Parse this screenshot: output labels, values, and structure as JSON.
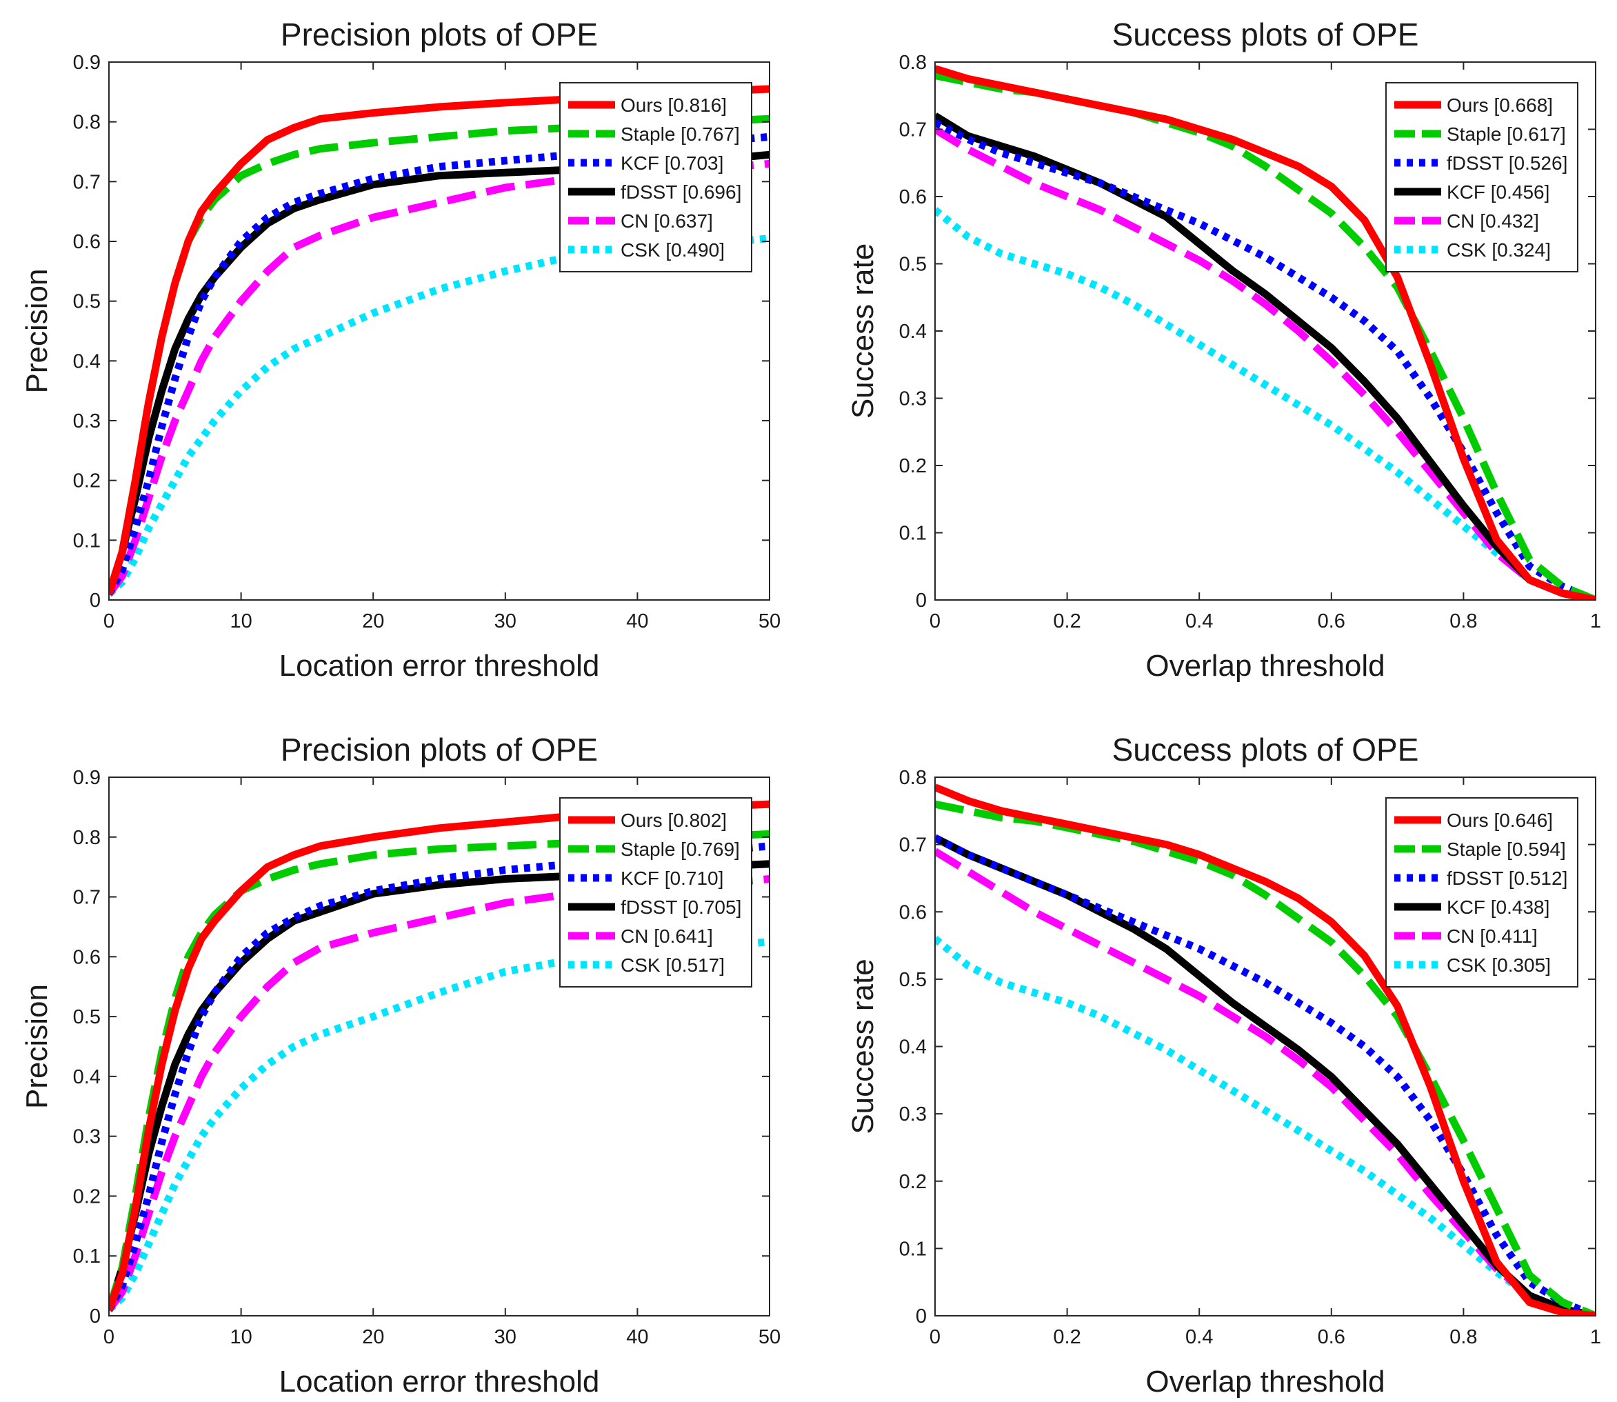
{
  "chart_data": [
    {
      "type": "line",
      "title": "Precision plots of OPE",
      "xlabel": "Location error threshold",
      "ylabel": "Precision",
      "xlim": [
        0,
        50
      ],
      "ylim": [
        0,
        0.9
      ],
      "xticks": [
        "0",
        "10",
        "20",
        "30",
        "40",
        "50"
      ],
      "yticks": [
        "0",
        "0.1",
        "0.2",
        "0.3",
        "0.4",
        "0.5",
        "0.6",
        "0.7",
        "0.8",
        "0.9"
      ],
      "legend_position": "top-right",
      "x": [
        0,
        1,
        2,
        3,
        4,
        5,
        6,
        7,
        8,
        10,
        12,
        14,
        16,
        20,
        25,
        30,
        35,
        40,
        45,
        50
      ],
      "series": [
        {
          "name": "Ours [0.816]",
          "color": "#ff0000",
          "dash": "solid",
          "values": [
            0.01,
            0.08,
            0.2,
            0.33,
            0.44,
            0.53,
            0.6,
            0.65,
            0.68,
            0.73,
            0.77,
            0.79,
            0.805,
            0.815,
            0.825,
            0.832,
            0.838,
            0.845,
            0.85,
            0.855
          ]
        },
        {
          "name": "Staple [0.767]",
          "color": "#00cc00",
          "dash": "long",
          "values": [
            0.01,
            0.08,
            0.2,
            0.33,
            0.44,
            0.53,
            0.6,
            0.64,
            0.67,
            0.71,
            0.73,
            0.745,
            0.755,
            0.765,
            0.775,
            0.785,
            0.79,
            0.795,
            0.8,
            0.805
          ]
        },
        {
          "name": "KCF [0.703]",
          "color": "#0000ff",
          "dash": "dot",
          "values": [
            0.01,
            0.05,
            0.12,
            0.2,
            0.29,
            0.37,
            0.44,
            0.5,
            0.54,
            0.6,
            0.64,
            0.665,
            0.68,
            0.705,
            0.725,
            0.735,
            0.745,
            0.755,
            0.765,
            0.775
          ]
        },
        {
          "name": "fDSST [0.696]",
          "color": "#000000",
          "dash": "solid",
          "values": [
            0.01,
            0.08,
            0.17,
            0.27,
            0.35,
            0.42,
            0.47,
            0.51,
            0.54,
            0.59,
            0.63,
            0.655,
            0.67,
            0.695,
            0.71,
            0.715,
            0.72,
            0.725,
            0.735,
            0.745
          ]
        },
        {
          "name": "CN [0.637]",
          "color": "#ff00ff",
          "dash": "long",
          "values": [
            0.01,
            0.04,
            0.1,
            0.17,
            0.24,
            0.3,
            0.35,
            0.4,
            0.44,
            0.5,
            0.55,
            0.59,
            0.61,
            0.64,
            0.665,
            0.69,
            0.705,
            0.715,
            0.72,
            0.73
          ]
        },
        {
          "name": "CSK [0.490]",
          "color": "#00e5ff",
          "dash": "dot",
          "values": [
            0.01,
            0.03,
            0.07,
            0.12,
            0.16,
            0.2,
            0.24,
            0.27,
            0.3,
            0.35,
            0.39,
            0.42,
            0.44,
            0.48,
            0.52,
            0.55,
            0.575,
            0.585,
            0.595,
            0.605
          ]
        }
      ],
      "legend": [
        "Ours [0.816]",
        "Staple [0.767]",
        "KCF [0.703]",
        "fDSST [0.696]",
        "CN [0.637]",
        "CSK [0.490]"
      ]
    },
    {
      "type": "line",
      "title": "Success plots of OPE",
      "xlabel": "Overlap threshold",
      "ylabel": "Success rate",
      "xlim": [
        0,
        1
      ],
      "ylim": [
        0,
        0.8
      ],
      "xticks": [
        "0",
        "0.2",
        "0.4",
        "0.6",
        "0.8",
        "1"
      ],
      "yticks": [
        "0",
        "0.1",
        "0.2",
        "0.3",
        "0.4",
        "0.5",
        "0.6",
        "0.7",
        "0.8"
      ],
      "legend_position": "top-right",
      "x": [
        0,
        0.05,
        0.1,
        0.15,
        0.2,
        0.25,
        0.3,
        0.35,
        0.4,
        0.45,
        0.5,
        0.55,
        0.6,
        0.65,
        0.7,
        0.75,
        0.8,
        0.85,
        0.9,
        0.95,
        1.0
      ],
      "series": [
        {
          "name": "Ours [0.668]",
          "color": "#ff0000",
          "dash": "solid",
          "values": [
            0.79,
            0.775,
            0.765,
            0.755,
            0.745,
            0.735,
            0.725,
            0.715,
            0.7,
            0.685,
            0.665,
            0.645,
            0.615,
            0.565,
            0.48,
            0.35,
            0.21,
            0.09,
            0.03,
            0.01,
            0.0
          ]
        },
        {
          "name": "Staple [0.617]",
          "color": "#00cc00",
          "dash": "long",
          "values": [
            0.78,
            0.77,
            0.76,
            0.755,
            0.745,
            0.735,
            0.725,
            0.71,
            0.695,
            0.675,
            0.645,
            0.61,
            0.575,
            0.525,
            0.465,
            0.37,
            0.27,
            0.16,
            0.06,
            0.02,
            0.0
          ]
        },
        {
          "name": "fDSST [0.526]",
          "color": "#0000ff",
          "dash": "dot",
          "values": [
            0.71,
            0.685,
            0.665,
            0.65,
            0.635,
            0.62,
            0.6,
            0.58,
            0.56,
            0.535,
            0.51,
            0.48,
            0.45,
            0.415,
            0.37,
            0.3,
            0.22,
            0.13,
            0.05,
            0.02,
            0.0
          ]
        },
        {
          "name": "KCF [0.456]",
          "color": "#000000",
          "dash": "solid",
          "values": [
            0.72,
            0.69,
            0.675,
            0.66,
            0.64,
            0.62,
            0.595,
            0.57,
            0.53,
            0.49,
            0.455,
            0.415,
            0.375,
            0.325,
            0.27,
            0.205,
            0.14,
            0.08,
            0.03,
            0.01,
            0.0
          ]
        },
        {
          "name": "CN [0.432]",
          "color": "#ff00ff",
          "dash": "long",
          "values": [
            0.7,
            0.67,
            0.645,
            0.62,
            0.6,
            0.58,
            0.555,
            0.53,
            0.505,
            0.475,
            0.44,
            0.4,
            0.355,
            0.305,
            0.25,
            0.19,
            0.13,
            0.07,
            0.03,
            0.01,
            0.0
          ]
        },
        {
          "name": "CSK [0.324]",
          "color": "#00e5ff",
          "dash": "dot",
          "values": [
            0.58,
            0.54,
            0.515,
            0.5,
            0.485,
            0.465,
            0.44,
            0.41,
            0.38,
            0.35,
            0.32,
            0.29,
            0.26,
            0.225,
            0.19,
            0.15,
            0.11,
            0.07,
            0.03,
            0.01,
            0.0
          ]
        }
      ],
      "legend": [
        "Ours [0.668]",
        "Staple [0.617]",
        "fDSST [0.526]",
        "KCF [0.456]",
        "CN [0.432]",
        "CSK [0.324]"
      ]
    },
    {
      "type": "line",
      "title": "Precision plots of OPE",
      "xlabel": "Location error threshold",
      "ylabel": "Precision",
      "xlim": [
        0,
        50
      ],
      "ylim": [
        0,
        0.9
      ],
      "xticks": [
        "0",
        "10",
        "20",
        "30",
        "40",
        "50"
      ],
      "yticks": [
        "0",
        "0.1",
        "0.2",
        "0.3",
        "0.4",
        "0.5",
        "0.6",
        "0.7",
        "0.8",
        "0.9"
      ],
      "legend_position": "top-right",
      "x": [
        0,
        1,
        2,
        3,
        4,
        5,
        6,
        7,
        8,
        10,
        12,
        14,
        16,
        20,
        25,
        30,
        35,
        40,
        45,
        50
      ],
      "series": [
        {
          "name": "Ours [0.802]",
          "color": "#ff0000",
          "dash": "solid",
          "values": [
            0.01,
            0.07,
            0.18,
            0.31,
            0.42,
            0.51,
            0.58,
            0.63,
            0.66,
            0.71,
            0.75,
            0.77,
            0.785,
            0.8,
            0.815,
            0.825,
            0.835,
            0.843,
            0.85,
            0.855
          ]
        },
        {
          "name": "Staple [0.769]",
          "color": "#00cc00",
          "dash": "long",
          "values": [
            0.01,
            0.08,
            0.2,
            0.33,
            0.44,
            0.53,
            0.6,
            0.64,
            0.67,
            0.71,
            0.73,
            0.745,
            0.755,
            0.77,
            0.78,
            0.785,
            0.79,
            0.795,
            0.8,
            0.805
          ]
        },
        {
          "name": "KCF [0.710]",
          "color": "#0000ff",
          "dash": "dot",
          "values": [
            0.01,
            0.05,
            0.12,
            0.2,
            0.29,
            0.37,
            0.44,
            0.5,
            0.54,
            0.6,
            0.64,
            0.665,
            0.685,
            0.71,
            0.73,
            0.745,
            0.755,
            0.765,
            0.775,
            0.785
          ]
        },
        {
          "name": "fDSST [0.705]",
          "color": "#000000",
          "dash": "solid",
          "values": [
            0.01,
            0.08,
            0.17,
            0.27,
            0.35,
            0.42,
            0.47,
            0.51,
            0.54,
            0.59,
            0.63,
            0.66,
            0.675,
            0.705,
            0.72,
            0.73,
            0.735,
            0.74,
            0.75,
            0.755
          ]
        },
        {
          "name": "CN [0.641]",
          "color": "#ff00ff",
          "dash": "long",
          "values": [
            0.01,
            0.04,
            0.1,
            0.17,
            0.24,
            0.3,
            0.35,
            0.4,
            0.44,
            0.5,
            0.55,
            0.59,
            0.615,
            0.64,
            0.665,
            0.69,
            0.705,
            0.715,
            0.72,
            0.73
          ]
        },
        {
          "name": "CSK [0.517]",
          "color": "#00e5ff",
          "dash": "dot",
          "values": [
            0.01,
            0.03,
            0.07,
            0.12,
            0.17,
            0.22,
            0.26,
            0.3,
            0.33,
            0.38,
            0.42,
            0.45,
            0.47,
            0.5,
            0.54,
            0.575,
            0.595,
            0.605,
            0.615,
            0.625
          ]
        }
      ],
      "legend": [
        "Ours [0.802]",
        "Staple [0.769]",
        "KCF [0.710]",
        "fDSST [0.705]",
        "CN [0.641]",
        "CSK [0.517]"
      ]
    },
    {
      "type": "line",
      "title": "Success plots of OPE",
      "xlabel": "Overlap threshold",
      "ylabel": "Success rate",
      "xlim": [
        0,
        1
      ],
      "ylim": [
        0,
        0.8
      ],
      "xticks": [
        "0",
        "0.2",
        "0.4",
        "0.6",
        "0.8",
        "1"
      ],
      "yticks": [
        "0",
        "0.1",
        "0.2",
        "0.3",
        "0.4",
        "0.5",
        "0.6",
        "0.7",
        "0.8"
      ],
      "legend_position": "top-right",
      "x": [
        0,
        0.05,
        0.1,
        0.15,
        0.2,
        0.25,
        0.3,
        0.35,
        0.4,
        0.45,
        0.5,
        0.55,
        0.6,
        0.65,
        0.7,
        0.75,
        0.8,
        0.85,
        0.9,
        0.95,
        1.0
      ],
      "series": [
        {
          "name": "Ours [0.646]",
          "color": "#ff0000",
          "dash": "solid",
          "values": [
            0.785,
            0.765,
            0.75,
            0.74,
            0.73,
            0.72,
            0.71,
            0.7,
            0.685,
            0.665,
            0.645,
            0.62,
            0.585,
            0.535,
            0.46,
            0.34,
            0.2,
            0.08,
            0.02,
            0.005,
            0.0
          ]
        },
        {
          "name": "Staple [0.594]",
          "color": "#00cc00",
          "dash": "long",
          "values": [
            0.76,
            0.75,
            0.74,
            0.735,
            0.725,
            0.715,
            0.705,
            0.69,
            0.675,
            0.655,
            0.625,
            0.59,
            0.555,
            0.505,
            0.445,
            0.355,
            0.26,
            0.16,
            0.06,
            0.02,
            0.0
          ]
        },
        {
          "name": "fDSST [0.512]",
          "color": "#0000ff",
          "dash": "dot",
          "values": [
            0.71,
            0.685,
            0.665,
            0.645,
            0.625,
            0.605,
            0.585,
            0.565,
            0.545,
            0.52,
            0.495,
            0.465,
            0.435,
            0.4,
            0.355,
            0.29,
            0.21,
            0.12,
            0.05,
            0.02,
            0.0
          ]
        },
        {
          "name": "KCF [0.438]",
          "color": "#000000",
          "dash": "solid",
          "values": [
            0.71,
            0.685,
            0.665,
            0.645,
            0.625,
            0.6,
            0.575,
            0.545,
            0.505,
            0.465,
            0.43,
            0.395,
            0.355,
            0.305,
            0.255,
            0.195,
            0.135,
            0.075,
            0.03,
            0.01,
            0.0
          ]
        },
        {
          "name": "CN [0.411]",
          "color": "#ff00ff",
          "dash": "long",
          "values": [
            0.69,
            0.66,
            0.63,
            0.6,
            0.575,
            0.55,
            0.525,
            0.5,
            0.475,
            0.445,
            0.415,
            0.38,
            0.34,
            0.29,
            0.24,
            0.18,
            0.125,
            0.07,
            0.03,
            0.01,
            0.0
          ]
        },
        {
          "name": "CSK [0.305]",
          "color": "#00e5ff",
          "dash": "dot",
          "values": [
            0.56,
            0.52,
            0.495,
            0.48,
            0.465,
            0.445,
            0.42,
            0.395,
            0.365,
            0.335,
            0.305,
            0.275,
            0.245,
            0.215,
            0.18,
            0.145,
            0.105,
            0.065,
            0.03,
            0.01,
            0.0
          ]
        }
      ],
      "legend": [
        "Ours [0.646]",
        "Staple [0.594]",
        "fDSST [0.512]",
        "KCF [0.438]",
        "CN [0.411]",
        "CSK [0.305]"
      ]
    }
  ]
}
